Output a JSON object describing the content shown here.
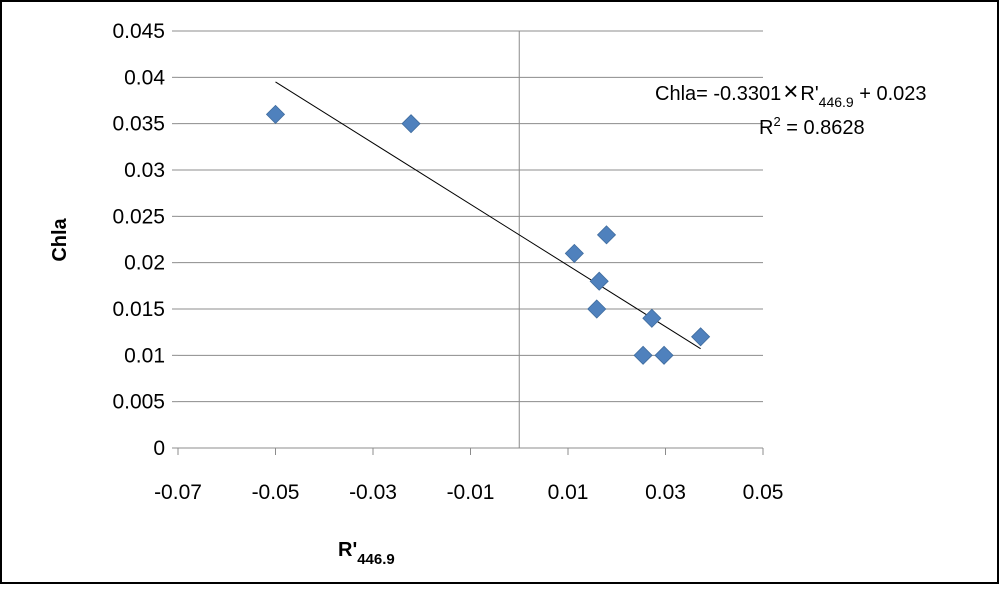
{
  "chart_data": {
    "type": "scatter",
    "xlabel_main": "R'",
    "xlabel_sub": "446.9",
    "ylabel": "Chla",
    "xlim": [
      -0.07,
      0.05
    ],
    "ylim": [
      0,
      0.045
    ],
    "x_ticks": [
      -0.07,
      -0.05,
      -0.03,
      -0.01,
      0.01,
      0.03,
      0.05
    ],
    "x_tick_labels": [
      "-0.07",
      "-0.05",
      "-0.03",
      "-0.01",
      "0.01",
      "0.03",
      "0.05"
    ],
    "y_ticks": [
      0,
      0.005,
      0.01,
      0.015,
      0.02,
      0.025,
      0.03,
      0.035,
      0.04,
      0.045
    ],
    "y_tick_labels": [
      "0",
      "0.005",
      "0.01",
      "0.015",
      "0.02",
      "0.025",
      "0.03",
      "0.035",
      "0.04",
      "0.045"
    ],
    "grid": "horizontal",
    "series": [
      {
        "x": [
          -0.05,
          -0.0222,
          0.0113,
          0.0179,
          0.0164,
          0.0159,
          0.0272,
          0.0254,
          0.0297,
          0.0372
        ],
        "y": [
          0.036,
          0.035,
          0.021,
          0.023,
          0.018,
          0.015,
          0.014,
          0.01,
          0.01,
          0.012
        ],
        "color": "#4f81bd",
        "marker": "diamond"
      }
    ],
    "trendline": {
      "slope": -0.3301,
      "intercept": 0.023,
      "x_range": [
        -0.05,
        0.0372
      ],
      "color": "#000000"
    },
    "annotation": {
      "equation_prefix": "Chla= -0.3301",
      "times_symbol": "×",
      "equation_var": "R'",
      "equation_sub": "446.9",
      "equation_suffix": " + 0.023",
      "r2_label": "R",
      "r2_sup": "2",
      "r2_value": " = 0.8628"
    }
  }
}
